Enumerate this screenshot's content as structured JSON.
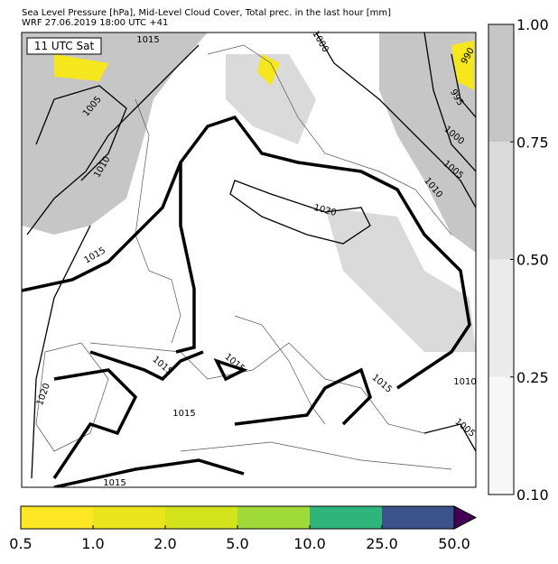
{
  "header": {
    "line1": "Sea Level Pressure [hPa], Mid-Level Cloud Cover, Total prec. in the last hour [mm]",
    "line2": "WRF 27.06.2019 18:00 UTC +41"
  },
  "time_label": "11 UTC Sat",
  "contour_labels": [
    1015,
    1000,
    990,
    995,
    1005,
    1000,
    1010,
    1005,
    1010,
    1020,
    1015,
    1015,
    1015,
    1020,
    1015,
    1015,
    1010,
    1005,
    1015
  ],
  "cloud_cover_colorbar": {
    "ticks": [
      {
        "value": 1,
        "label": "1.00"
      },
      0.75,
      {
        "value": 0.5,
        "label": "0.50"
      },
      0.25,
      {
        "value": 0.1,
        "label": "0.10"
      }
    ],
    "colors": [
      "#c6c6c6",
      "#dadada",
      "#ebebeb",
      "#f7f7f7"
    ]
  },
  "precip_colorbar": {
    "ticks": [
      0.5,
      {
        "value": 1,
        "label": "1.0"
      },
      {
        "value": 2,
        "label": "2.0"
      },
      {
        "value": 5,
        "label": "5.0"
      },
      {
        "value": 10,
        "label": "10.0"
      },
      {
        "value": 25,
        "label": "25.0"
      },
      {
        "value": 50,
        "label": "50.0"
      }
    ],
    "colors": [
      "#fde725",
      "#eae51a",
      "#d2e21b",
      "#a0da39",
      "#2fb47c",
      "#3b528b"
    ],
    "extend_color": "#440154"
  }
}
